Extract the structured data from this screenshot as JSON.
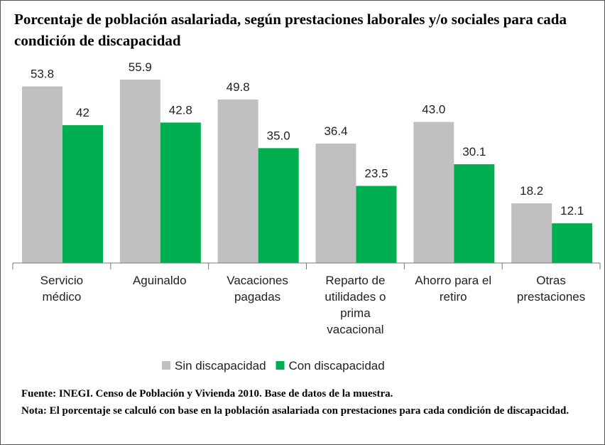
{
  "chart_data": {
    "type": "bar",
    "title": "Porcentaje de población asalariada, según prestaciones laborales y/o sociales para cada condición de discapacidad",
    "categories": [
      [
        "Servicio",
        "médico"
      ],
      [
        "Aguinaldo"
      ],
      [
        "Vacaciones",
        "pagadas"
      ],
      [
        "Reparto de",
        "utilidades o",
        "prima",
        "vacacional"
      ],
      [
        "Ahorro para el",
        "retiro"
      ],
      [
        "Otras",
        "prestaciones"
      ]
    ],
    "series": [
      {
        "name": "Sin discapacidad",
        "color": "#c0c0c0",
        "values": [
          53.8,
          55.9,
          49.8,
          36.4,
          43.0,
          18.2
        ],
        "value_labels": [
          "53.8",
          "55.9",
          "49.8",
          "36.4",
          "43.0",
          "18.2"
        ]
      },
      {
        "name": "Con discapacidad",
        "color": "#00b050",
        "values": [
          42,
          42.8,
          35.0,
          23.5,
          30.1,
          12.1
        ],
        "value_labels": [
          "42",
          "42.8",
          "35.0",
          "23.5",
          "30.1",
          "12.1"
        ]
      }
    ],
    "ylim": [
      0,
      60
    ],
    "notes": [
      "Fuente: INEGI. Censo de Población y Vivienda 2010. Base de datos de la muestra.",
      "Nota: El porcentaje se calculó con base en la población asalariada con prestaciones para cada condición de discapacidad."
    ]
  }
}
